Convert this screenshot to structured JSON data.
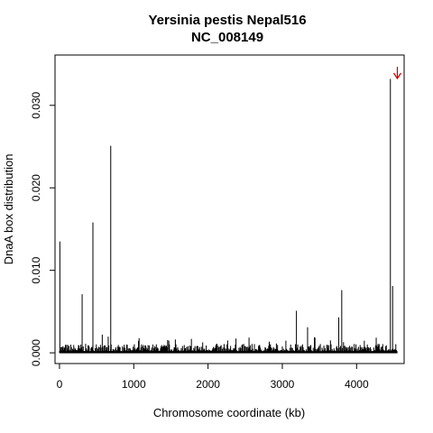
{
  "chart_data": {
    "type": "bar",
    "title": "Yersinia pestis Nepal516",
    "subtitle": "NC_008149",
    "xlabel": "Chromosome coordinate (kb)",
    "ylabel": "DnaA box distribution",
    "xlim": [
      -60,
      4640
    ],
    "ylim": [
      -0.0013,
      0.0361
    ],
    "xticks": [
      0,
      1000,
      2000,
      3000,
      4000
    ],
    "xtick_labels": [
      "0",
      "1000",
      "2000",
      "3000",
      "4000"
    ],
    "yticks": [
      0.0,
      0.01,
      0.02,
      0.03
    ],
    "ytick_labels": [
      "0.000",
      "0.010",
      "0.020",
      "0.030"
    ],
    "grid": false,
    "peaks": [
      {
        "x": 5,
        "y": 0.0135
      },
      {
        "x": 305,
        "y": 0.0071
      },
      {
        "x": 450,
        "y": 0.0158
      },
      {
        "x": 690,
        "y": 0.0251
      },
      {
        "x": 3190,
        "y": 0.0051
      },
      {
        "x": 3340,
        "y": 0.0031
      },
      {
        "x": 3760,
        "y": 0.0043
      },
      {
        "x": 3800,
        "y": 0.0076
      },
      {
        "x": 4455,
        "y": 0.0332
      },
      {
        "x": 4485,
        "y": 0.0081
      }
    ],
    "marker": {
      "x": 4500,
      "direction": "down",
      "color": "#cc0000"
    }
  }
}
